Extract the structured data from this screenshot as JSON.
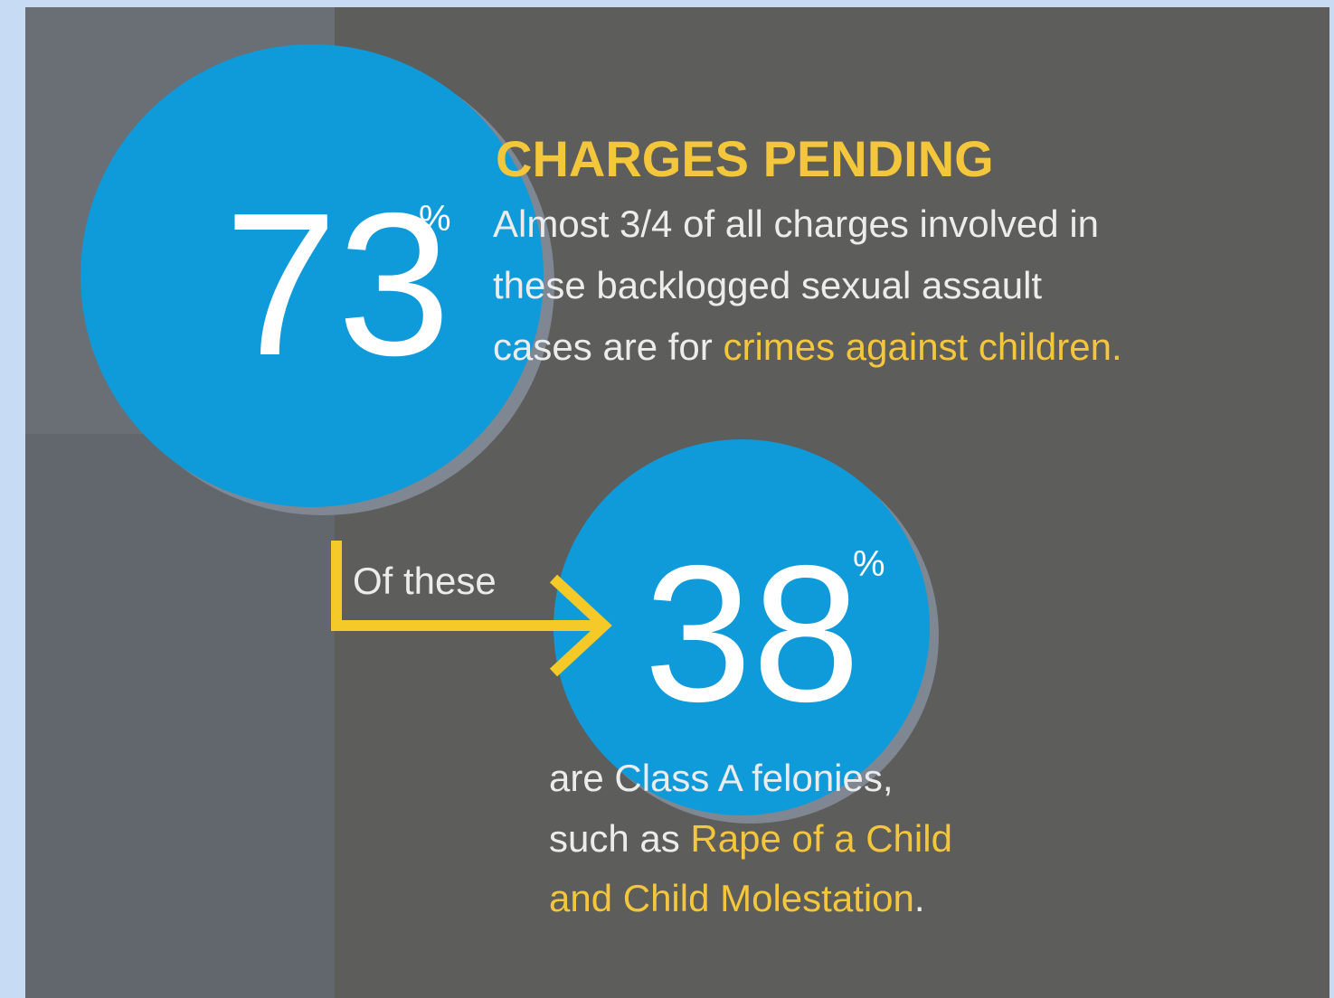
{
  "heading": "CHARGES PENDING",
  "stat_1": {
    "number": "73",
    "unit": "%"
  },
  "body_1": {
    "lines": [
      "Almost 3/4 of all charges involved in",
      "these backlogged sexual assault",
      "cases are for "
    ],
    "highlight": "crimes against children."
  },
  "connector": "Of these",
  "stat_2": {
    "number": "38",
    "unit": "%"
  },
  "body_2": {
    "line_1": "are Class A felonies,",
    "line_2_plain": "such as ",
    "highlight_1": "Rape of a Child",
    "highlight_2": "and Child Molestation",
    "end": "."
  }
}
